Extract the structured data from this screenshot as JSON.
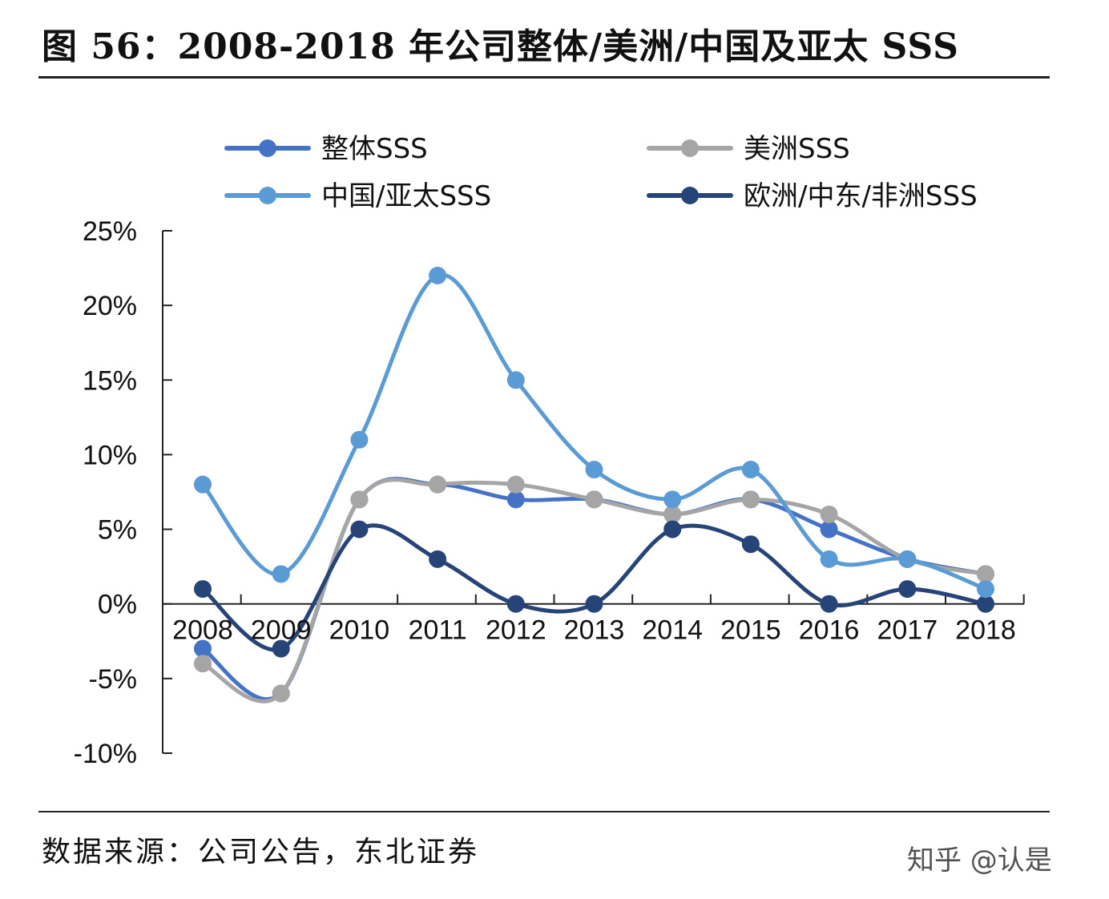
{
  "header": {
    "title": "图 56：2008-2018 年公司整体/美洲/中国及亚太 SSS"
  },
  "footer": {
    "source": "数据来源：公司公告，东北证券",
    "watermark": "知乎 @认是"
  },
  "colors": {
    "overall": "#4472C4",
    "americas": "#A5A5A5",
    "china_apac": "#5B9BD5",
    "emea": "#264478",
    "axis": "#222222"
  },
  "chart_data": {
    "type": "line",
    "title": "",
    "xlabel": "",
    "ylabel": "",
    "x": [
      "2008",
      "2009",
      "2010",
      "2011",
      "2012",
      "2013",
      "2014",
      "2015",
      "2016",
      "2017",
      "2018"
    ],
    "ylim": [
      -10,
      25
    ],
    "yticks": [
      25,
      20,
      15,
      10,
      5,
      0,
      -5,
      -10
    ],
    "ytick_labels": [
      "25%",
      "20%",
      "15%",
      "10%",
      "5%",
      "0%",
      "-5%",
      "-10%"
    ],
    "grid": false,
    "smooth": true,
    "legend": {
      "position": "top"
    },
    "series": [
      {
        "name": "整体SSS",
        "color": "#4472C4",
        "values": [
          -3,
          -6,
          7,
          8,
          7,
          7,
          6,
          7,
          5,
          3,
          2
        ]
      },
      {
        "name": "美洲SSS",
        "color": "#A5A5A5",
        "values": [
          -4,
          -6,
          7,
          8,
          8,
          7,
          6,
          7,
          6,
          3,
          2
        ]
      },
      {
        "name": "中国/亚太SSS",
        "color": "#5B9BD5",
        "values": [
          8,
          2,
          11,
          22,
          15,
          9,
          7,
          9,
          3,
          3,
          1
        ]
      },
      {
        "name": "欧洲/中东/非洲SSS",
        "color": "#264478",
        "values": [
          1,
          -3,
          5,
          3,
          0,
          0,
          5,
          4,
          0,
          1,
          0
        ]
      }
    ]
  }
}
